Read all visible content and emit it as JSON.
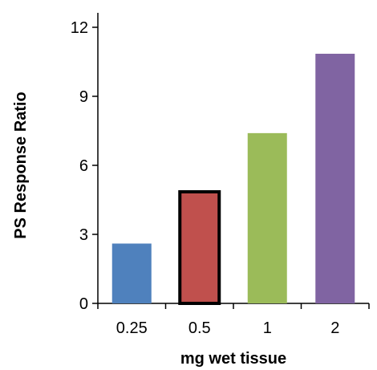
{
  "chart_data": {
    "type": "bar",
    "categories": [
      "0.25",
      "0.5",
      "1",
      "2"
    ],
    "values": [
      2.6,
      4.85,
      7.4,
      10.85
    ],
    "colors": [
      "#4F81BD",
      "#C0504D",
      "#9BBB59",
      "#8064A2"
    ],
    "highlighted_category": "0.5",
    "title": "",
    "xlabel": "mg wet tissue",
    "ylabel": "PS Response Ratio",
    "ylim": [
      0,
      12
    ],
    "yticks": [
      "0",
      "3",
      "6",
      "9",
      "12"
    ],
    "grid": false,
    "legend": "none"
  }
}
